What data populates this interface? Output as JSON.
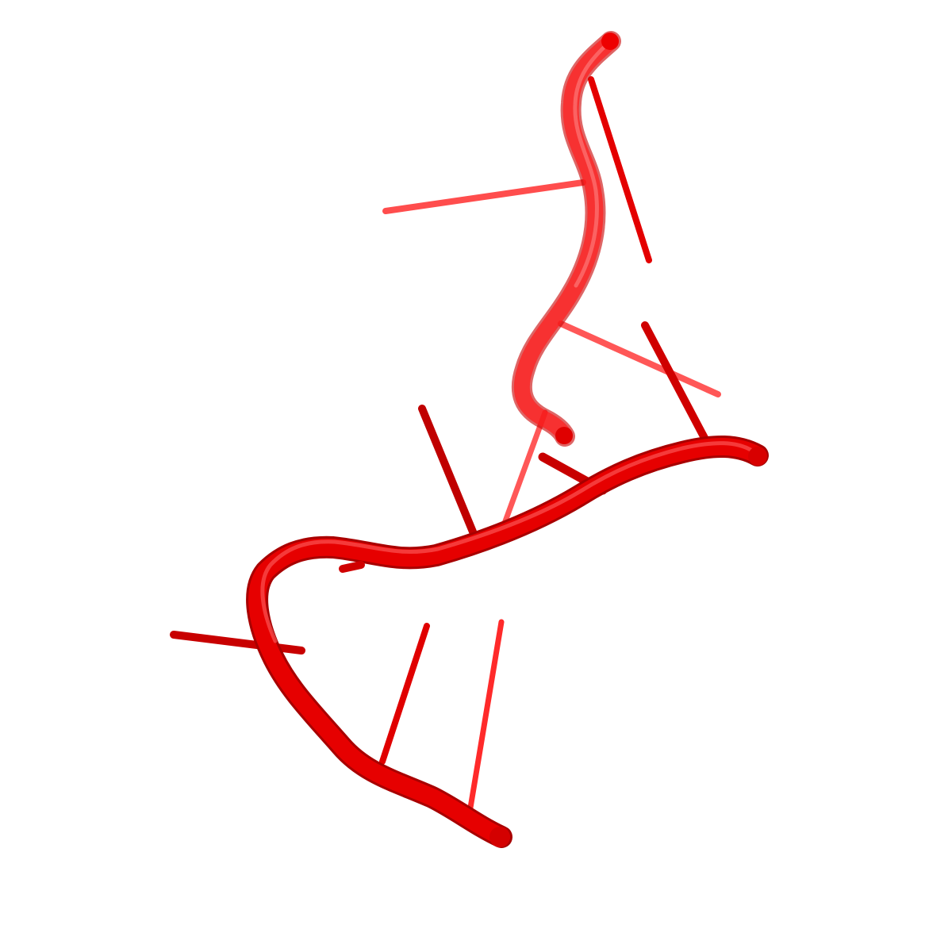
{
  "scene": {
    "background": "#ffffff",
    "subject": "rna-cartoon",
    "colors": {
      "backbone_front": "#e00000",
      "backbone_back": "#ee1111",
      "base_front": "#c00000",
      "base_back": "#ff3333",
      "highlight": "#ff8080"
    },
    "strands": [
      {
        "name": "upper-strand",
        "depth": "back"
      },
      {
        "name": "lower-strand",
        "depth": "front"
      }
    ],
    "base_count": 10
  }
}
